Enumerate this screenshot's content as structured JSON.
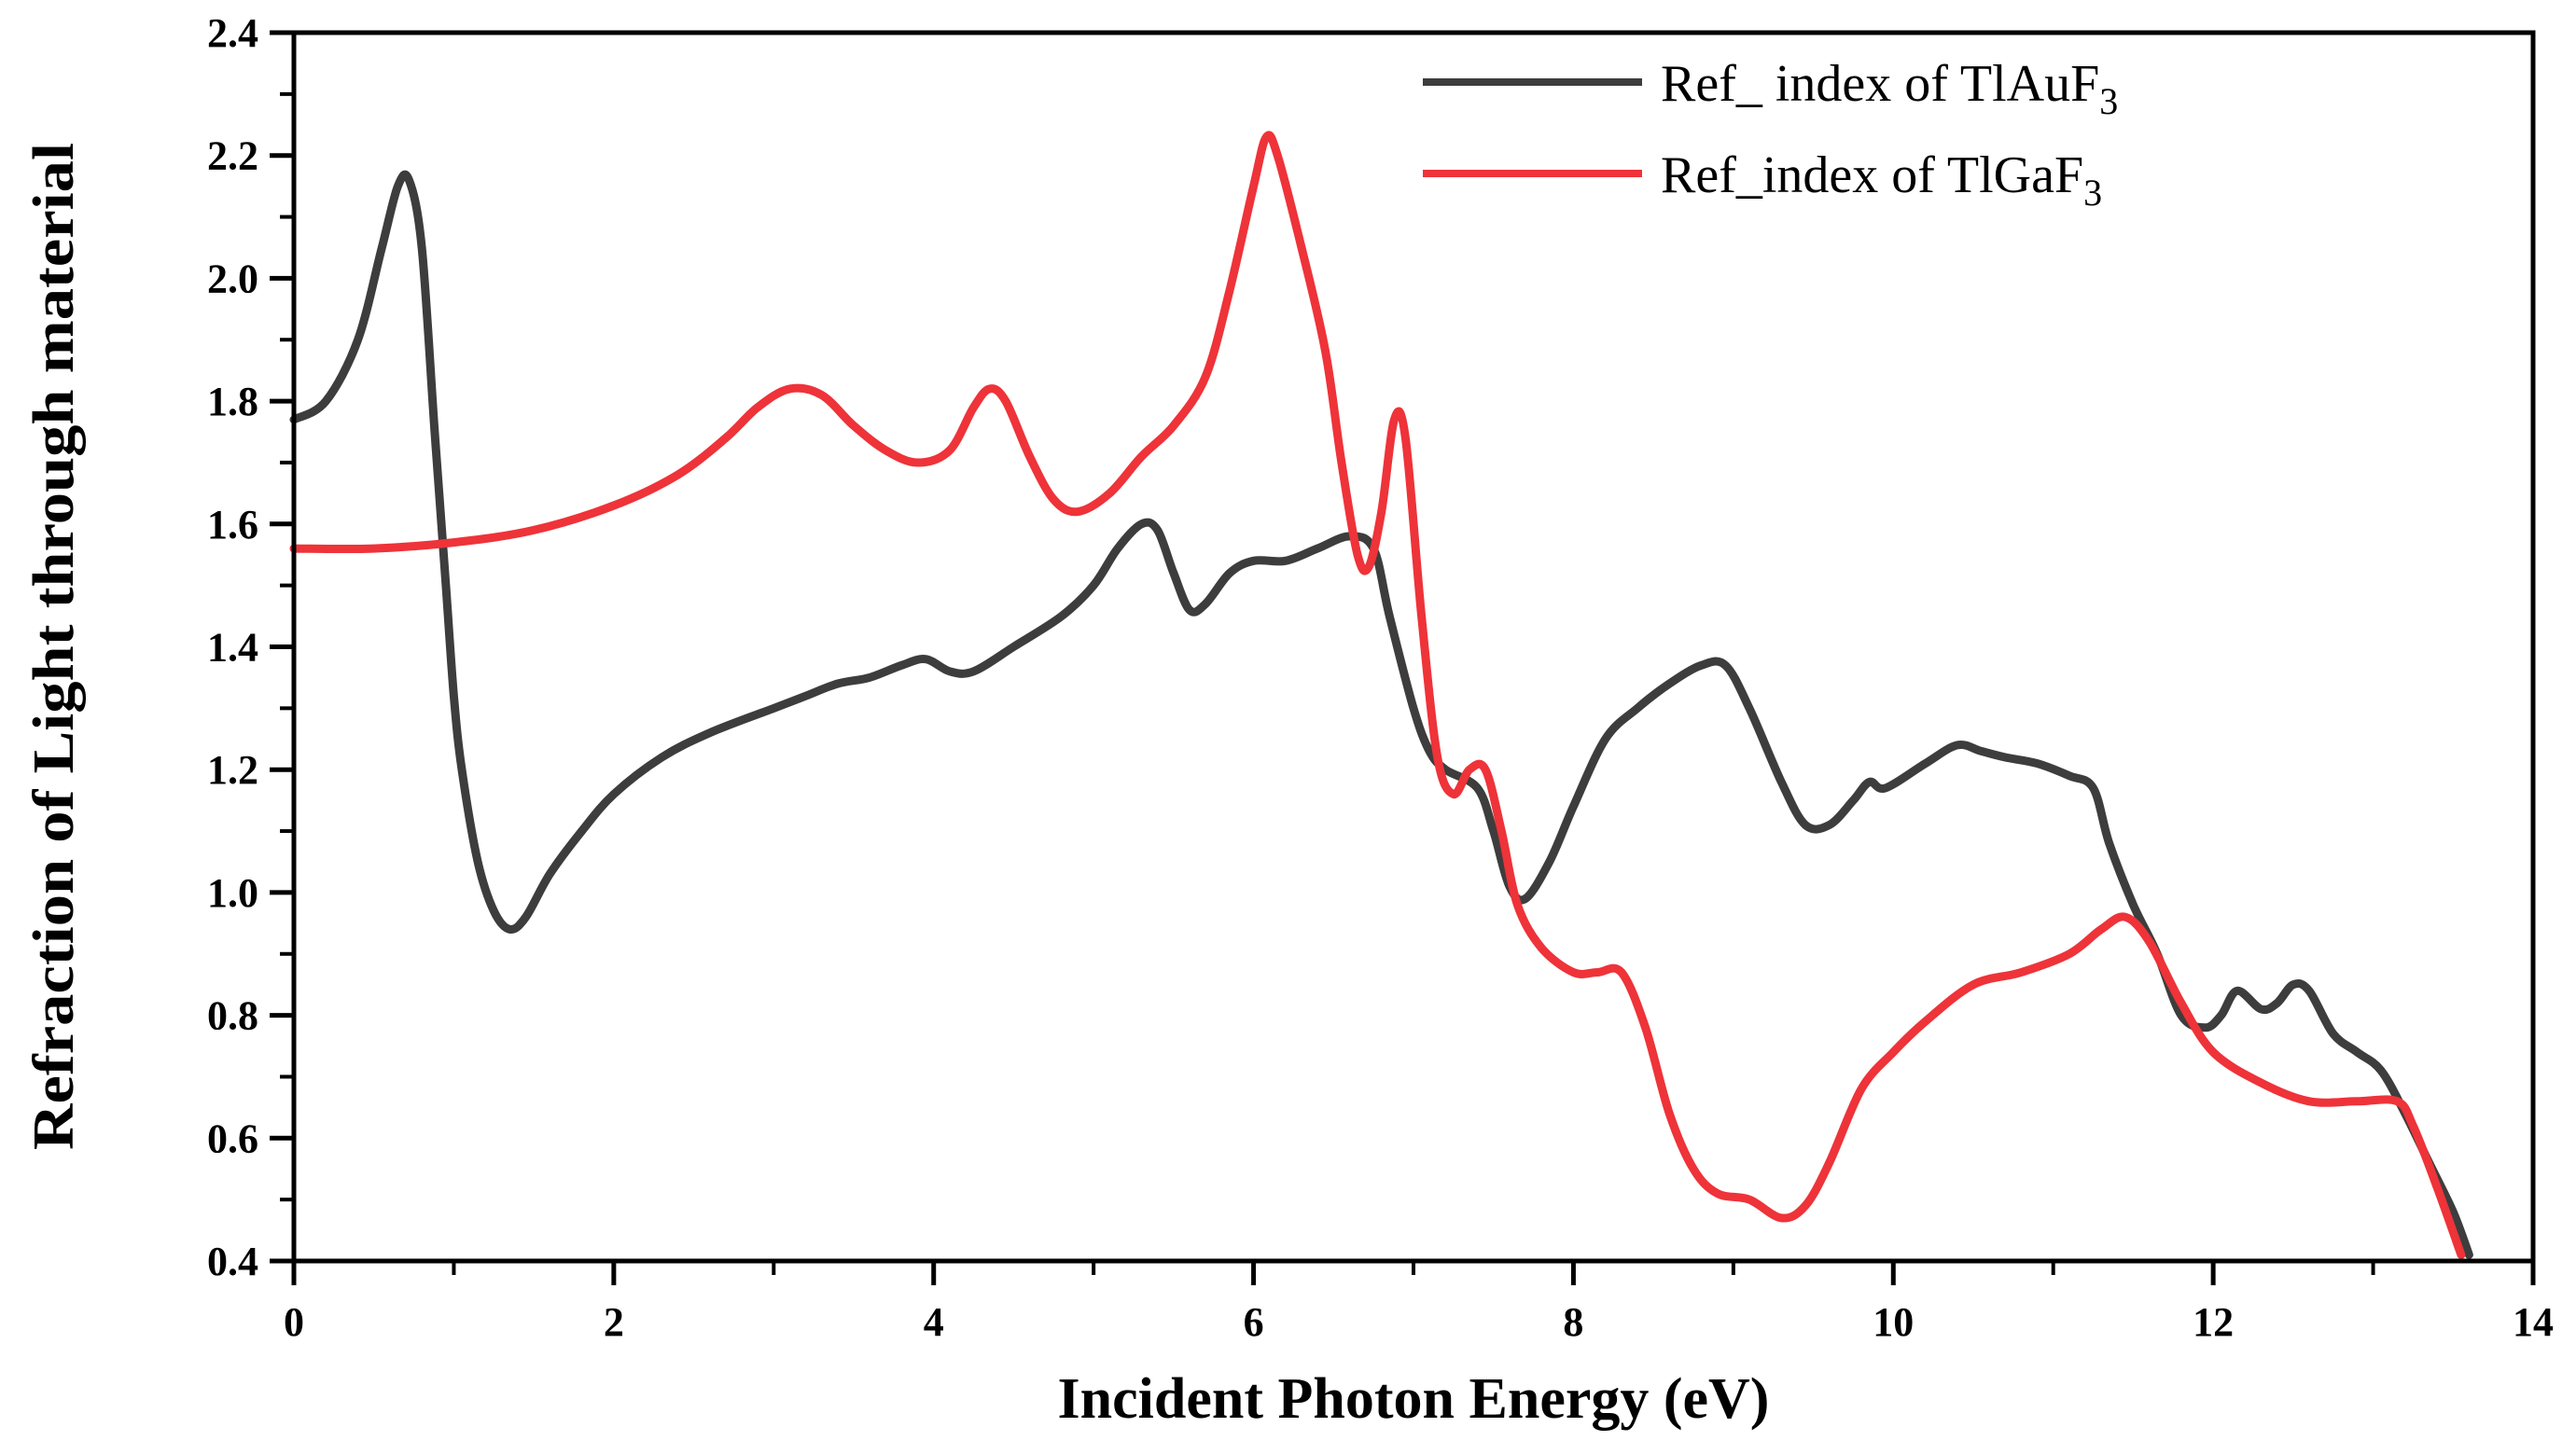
{
  "chart_data": {
    "type": "line",
    "title": "",
    "xlabel": "Incident Photon Energy (eV)",
    "ylabel": "Refraction of Light through material",
    "xlim": [
      0,
      14
    ],
    "ylim": [
      0.4,
      2.4
    ],
    "xticks": [
      "0",
      "2",
      "4",
      "6",
      "8",
      "10",
      "12",
      "14"
    ],
    "yticks": [
      "0.4",
      "0.6",
      "0.8",
      "1.0",
      "1.2",
      "1.4",
      "1.6",
      "1.8",
      "2.0",
      "2.2",
      "2.4"
    ],
    "legend_position": "top-right",
    "series": [
      {
        "name": "Ref_ index of TlAuF3",
        "legend_main": "Ref_ index of TlAuF",
        "legend_sub": "3",
        "color": "#3d3d3d",
        "points": [
          [
            0.0,
            1.77
          ],
          [
            0.2,
            1.8
          ],
          [
            0.4,
            1.9
          ],
          [
            0.55,
            2.05
          ],
          [
            0.65,
            2.15
          ],
          [
            0.72,
            2.16
          ],
          [
            0.8,
            2.05
          ],
          [
            0.88,
            1.75
          ],
          [
            0.95,
            1.5
          ],
          [
            1.0,
            1.32
          ],
          [
            1.05,
            1.2
          ],
          [
            1.15,
            1.05
          ],
          [
            1.25,
            0.97
          ],
          [
            1.35,
            0.94
          ],
          [
            1.45,
            0.96
          ],
          [
            1.6,
            1.03
          ],
          [
            1.8,
            1.1
          ],
          [
            2.0,
            1.16
          ],
          [
            2.3,
            1.22
          ],
          [
            2.6,
            1.26
          ],
          [
            3.0,
            1.3
          ],
          [
            3.2,
            1.32
          ],
          [
            3.4,
            1.34
          ],
          [
            3.6,
            1.35
          ],
          [
            3.8,
            1.37
          ],
          [
            3.95,
            1.38
          ],
          [
            4.1,
            1.36
          ],
          [
            4.25,
            1.36
          ],
          [
            4.5,
            1.4
          ],
          [
            4.8,
            1.45
          ],
          [
            5.0,
            1.5
          ],
          [
            5.15,
            1.56
          ],
          [
            5.3,
            1.6
          ],
          [
            5.4,
            1.59
          ],
          [
            5.5,
            1.52
          ],
          [
            5.6,
            1.46
          ],
          [
            5.7,
            1.47
          ],
          [
            5.85,
            1.52
          ],
          [
            6.0,
            1.54
          ],
          [
            6.2,
            1.54
          ],
          [
            6.4,
            1.56
          ],
          [
            6.6,
            1.58
          ],
          [
            6.75,
            1.56
          ],
          [
            6.85,
            1.45
          ],
          [
            7.0,
            1.3
          ],
          [
            7.1,
            1.23
          ],
          [
            7.2,
            1.2
          ],
          [
            7.4,
            1.17
          ],
          [
            7.5,
            1.1
          ],
          [
            7.6,
            1.01
          ],
          [
            7.7,
            0.99
          ],
          [
            7.85,
            1.05
          ],
          [
            8.0,
            1.14
          ],
          [
            8.2,
            1.25
          ],
          [
            8.4,
            1.3
          ],
          [
            8.6,
            1.34
          ],
          [
            8.8,
            1.37
          ],
          [
            8.95,
            1.37
          ],
          [
            9.1,
            1.3
          ],
          [
            9.3,
            1.18
          ],
          [
            9.45,
            1.11
          ],
          [
            9.6,
            1.11
          ],
          [
            9.75,
            1.15
          ],
          [
            9.85,
            1.18
          ],
          [
            9.95,
            1.17
          ],
          [
            10.2,
            1.21
          ],
          [
            10.4,
            1.24
          ],
          [
            10.55,
            1.23
          ],
          [
            10.7,
            1.22
          ],
          [
            10.9,
            1.21
          ],
          [
            11.1,
            1.19
          ],
          [
            11.25,
            1.17
          ],
          [
            11.35,
            1.08
          ],
          [
            11.5,
            0.98
          ],
          [
            11.65,
            0.9
          ],
          [
            11.8,
            0.8
          ],
          [
            11.95,
            0.78
          ],
          [
            12.05,
            0.8
          ],
          [
            12.15,
            0.84
          ],
          [
            12.3,
            0.81
          ],
          [
            12.4,
            0.82
          ],
          [
            12.5,
            0.85
          ],
          [
            12.6,
            0.84
          ],
          [
            12.75,
            0.77
          ],
          [
            12.9,
            0.74
          ],
          [
            13.05,
            0.71
          ],
          [
            13.2,
            0.64
          ],
          [
            13.35,
            0.56
          ],
          [
            13.5,
            0.48
          ],
          [
            13.6,
            0.41
          ]
        ]
      },
      {
        "name": "Ref_index of TlGaF3",
        "legend_main": "Ref_index of TlGaF",
        "legend_sub": "3",
        "color": "#ee3339",
        "points": [
          [
            0.0,
            1.56
          ],
          [
            0.5,
            1.56
          ],
          [
            1.0,
            1.57
          ],
          [
            1.5,
            1.59
          ],
          [
            2.0,
            1.63
          ],
          [
            2.4,
            1.68
          ],
          [
            2.7,
            1.74
          ],
          [
            2.9,
            1.79
          ],
          [
            3.1,
            1.82
          ],
          [
            3.3,
            1.81
          ],
          [
            3.5,
            1.76
          ],
          [
            3.7,
            1.72
          ],
          [
            3.9,
            1.7
          ],
          [
            4.1,
            1.72
          ],
          [
            4.25,
            1.79
          ],
          [
            4.35,
            1.82
          ],
          [
            4.45,
            1.8
          ],
          [
            4.6,
            1.71
          ],
          [
            4.75,
            1.64
          ],
          [
            4.9,
            1.62
          ],
          [
            5.1,
            1.65
          ],
          [
            5.3,
            1.71
          ],
          [
            5.5,
            1.76
          ],
          [
            5.7,
            1.84
          ],
          [
            5.85,
            1.98
          ],
          [
            6.0,
            2.15
          ],
          [
            6.08,
            2.23
          ],
          [
            6.15,
            2.2
          ],
          [
            6.3,
            2.05
          ],
          [
            6.45,
            1.88
          ],
          [
            6.55,
            1.7
          ],
          [
            6.65,
            1.55
          ],
          [
            6.72,
            1.53
          ],
          [
            6.8,
            1.62
          ],
          [
            6.88,
            1.77
          ],
          [
            6.95,
            1.74
          ],
          [
            7.05,
            1.45
          ],
          [
            7.15,
            1.22
          ],
          [
            7.25,
            1.16
          ],
          [
            7.35,
            1.2
          ],
          [
            7.45,
            1.2
          ],
          [
            7.55,
            1.1
          ],
          [
            7.65,
            0.98
          ],
          [
            7.8,
            0.91
          ],
          [
            8.0,
            0.87
          ],
          [
            8.15,
            0.87
          ],
          [
            8.3,
            0.87
          ],
          [
            8.45,
            0.78
          ],
          [
            8.6,
            0.64
          ],
          [
            8.75,
            0.55
          ],
          [
            8.9,
            0.51
          ],
          [
            9.1,
            0.5
          ],
          [
            9.3,
            0.47
          ],
          [
            9.45,
            0.49
          ],
          [
            9.6,
            0.56
          ],
          [
            9.8,
            0.68
          ],
          [
            10.0,
            0.74
          ],
          [
            10.2,
            0.79
          ],
          [
            10.5,
            0.85
          ],
          [
            10.8,
            0.87
          ],
          [
            11.1,
            0.9
          ],
          [
            11.3,
            0.94
          ],
          [
            11.45,
            0.96
          ],
          [
            11.6,
            0.92
          ],
          [
            11.8,
            0.82
          ],
          [
            12.0,
            0.74
          ],
          [
            12.3,
            0.69
          ],
          [
            12.6,
            0.66
          ],
          [
            12.9,
            0.66
          ],
          [
            13.15,
            0.66
          ],
          [
            13.25,
            0.62
          ],
          [
            13.4,
            0.52
          ],
          [
            13.55,
            0.41
          ]
        ]
      }
    ]
  }
}
